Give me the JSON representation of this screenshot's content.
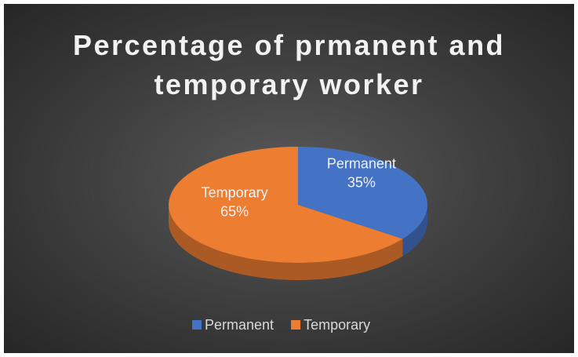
{
  "chart_data": {
    "type": "pie",
    "title": "Percentage of prmanent and temporary worker",
    "categories": [
      "Permanent",
      "Temporary"
    ],
    "values": [
      35,
      65
    ],
    "value_labels": [
      "35%",
      "65%"
    ],
    "colors": [
      "#4472c4",
      "#ed7d31"
    ],
    "legend": "bottom",
    "three_d": true
  }
}
